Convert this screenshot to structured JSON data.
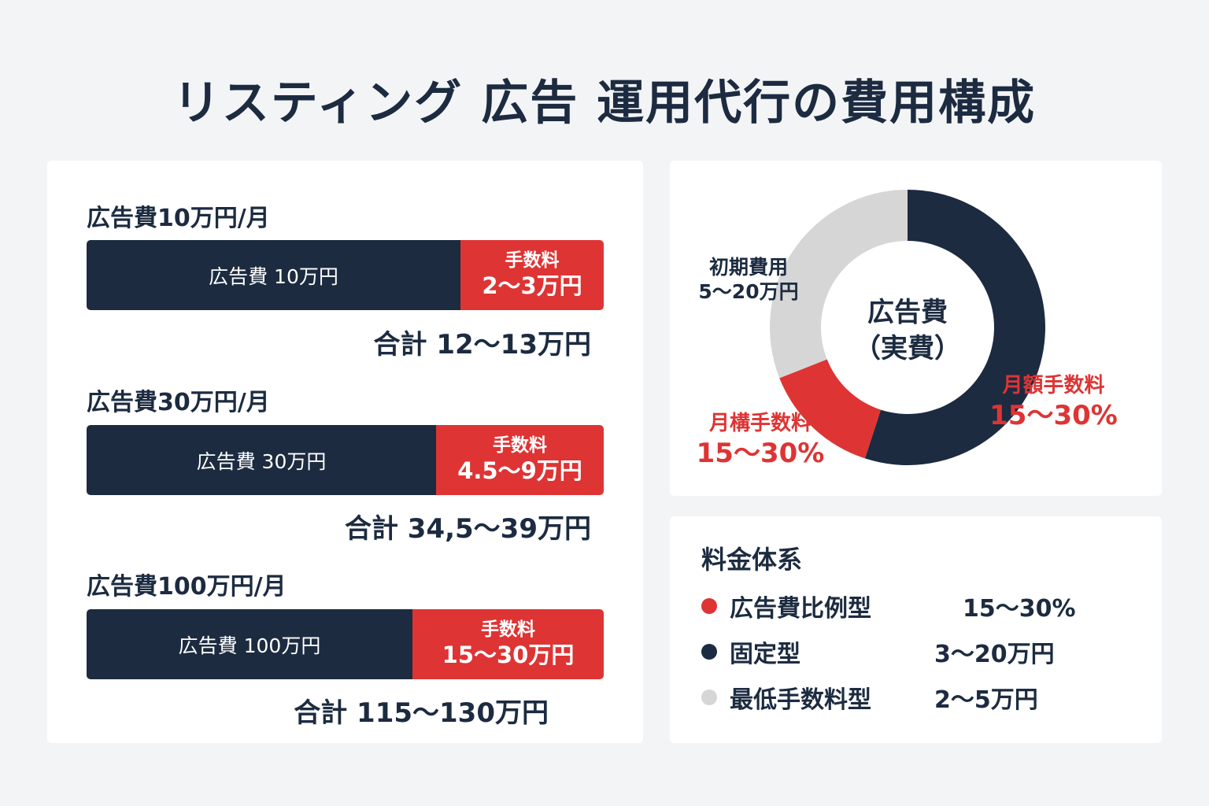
{
  "title": "リスティング 広告  運用代行の費用構成",
  "colors": {
    "navy": "#1c2b40",
    "red": "#de3434",
    "gray": "#d6d6d6",
    "background": "#f3f4f6",
    "card": "#ffffff"
  },
  "scenarios": [
    {
      "heading": "広告費10万円/月",
      "ad_label": "広告費 10万円",
      "fee_label": "手数料",
      "fee_value": "2〜3万円",
      "total": "合計 12〜13万円"
    },
    {
      "heading": "広告費30万円/月",
      "ad_label": "広告費 30万円",
      "fee_label": "手数料",
      "fee_value": "4.5〜9万円",
      "total": "合計  34,5〜39万円"
    },
    {
      "heading": "広告費100万円/月",
      "ad_label": "広告費 100万円",
      "fee_label": "手数料",
      "fee_value": "15〜30万円",
      "total": "合計  115〜130万円"
    }
  ],
  "chart_data": {
    "type": "pie",
    "center_label": [
      "広告費",
      "（実費）"
    ],
    "slices": [
      {
        "name": "月額手数料",
        "value_text": "15〜30%",
        "share": 0.55,
        "color": "#1c2b40"
      },
      {
        "name": "月構手数料",
        "value_text": "15〜30%",
        "share": 0.14,
        "color": "#de3434"
      },
      {
        "name": "初期費用",
        "value_text": "5〜20万円",
        "share": 0.31,
        "color": "#d6d6d6"
      }
    ],
    "slice_labels": [
      {
        "name": "月額手数料",
        "value": "15〜30%",
        "color": "#de3434"
      },
      {
        "name": "月構手数料",
        "value": "15〜30%",
        "color": "#de3434"
      },
      {
        "name": "初期費用",
        "value": "5〜20万円",
        "color": "#1c2b40"
      }
    ]
  },
  "legend": {
    "title": "料金体系",
    "items": [
      {
        "name": "広告費比例型",
        "value": "15〜30%",
        "color": "#de3434"
      },
      {
        "name": "固定型",
        "value": "3〜20万円",
        "color": "#1c2b40"
      },
      {
        "name": "最低手数料型",
        "value": "2〜5万円",
        "color": "#d6d6d6"
      }
    ]
  }
}
